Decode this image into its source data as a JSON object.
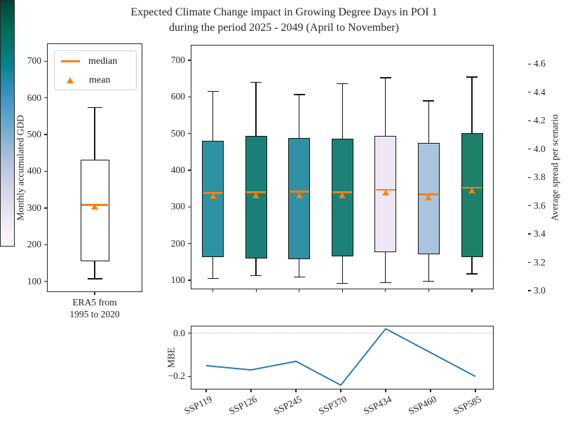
{
  "title": {
    "line1": "Expected Climate Change impact in Growing Degree Days in POI 1",
    "line2": "during the period 2025 - 2049 (April to November)"
  },
  "legend": {
    "median_label": "median",
    "mean_label": "mean"
  },
  "era5_axis": {
    "ylabel": "Monthly accumulated GDD",
    "xtick_line1": "ERA5 from",
    "xtick_line2": "1995 to 2020"
  },
  "mbe_axis": {
    "ylabel": "MBE"
  },
  "colorbar": {
    "label": "Average spread per scenario",
    "colormap": "PuBuGn",
    "vmin": 3.0,
    "vmax": 4.74,
    "ticks": [
      {
        "v": 3.0,
        "label": "3.0"
      },
      {
        "v": 3.2,
        "label": "3.2"
      },
      {
        "v": 3.4,
        "label": "3.4"
      },
      {
        "v": 3.6,
        "label": "3.6"
      },
      {
        "v": 3.8,
        "label": "3.8"
      },
      {
        "v": 4.0,
        "label": "4.0"
      },
      {
        "v": 4.2,
        "label": "4.2"
      },
      {
        "v": 4.4,
        "label": "4.4"
      },
      {
        "v": 4.6,
        "label": "4.6"
      }
    ],
    "gradient": [
      "#fff7fb",
      "#ece7f2",
      "#d0d1e6",
      "#a6bddb",
      "#67a9cf",
      "#3690c0",
      "#02818a",
      "#016c59",
      "#014636"
    ]
  },
  "colors": {
    "median": "#ff7f0e",
    "mean": "#ff7f0e",
    "mbe_line": "#1f77b4",
    "zero_line": "#bdbdbd",
    "box_edge": "#141414"
  },
  "chart_data": [
    {
      "type": "boxplot",
      "name": "era5_reference_boxplot",
      "ylabel": "Monthly accumulated GDD",
      "ylim": [
        71,
        748
      ],
      "yticks": [
        100,
        200,
        300,
        400,
        500,
        600,
        700
      ],
      "categories": [
        "ERA5 from 1995 to 2020"
      ],
      "series": [
        {
          "label": "ERA5 from 1995 to 2020",
          "whislo": 107,
          "q1": 155,
          "med": 308,
          "mean": 303,
          "q3": 431,
          "whishi": 573,
          "fill": "#ffffff"
        }
      ],
      "legend": [
        {
          "label": "median",
          "marker": "line",
          "color": "#ff7f0e"
        },
        {
          "label": "mean",
          "marker": "triangle",
          "color": "#ff7f0e"
        }
      ]
    },
    {
      "type": "boxplot",
      "name": "ssp_scenario_boxplots",
      "ylim": [
        75,
        742
      ],
      "yticks": [
        100,
        200,
        300,
        400,
        500,
        600,
        700
      ],
      "categories": [
        "SSP119",
        "SSP126",
        "SSP245",
        "SSP370",
        "SSP434",
        "SSP460",
        "SSP585"
      ],
      "series": [
        {
          "label": "SSP119",
          "whislo": 105,
          "q1": 163,
          "med": 338,
          "mean": 330,
          "q3": 480,
          "whishi": 615,
          "fill": "#2e91a4",
          "spread_est": 4.2
        },
        {
          "label": "SSP126",
          "whislo": 112,
          "q1": 160,
          "med": 340,
          "mean": 332,
          "q3": 494,
          "whishi": 640,
          "fill": "#1a8078",
          "spread_est": 4.4
        },
        {
          "label": "SSP245",
          "whislo": 108,
          "q1": 157,
          "med": 342,
          "mean": 331,
          "q3": 488,
          "whishi": 606,
          "fill": "#2e91a4",
          "spread_est": 4.2
        },
        {
          "label": "SSP370",
          "whislo": 91,
          "q1": 164,
          "med": 340,
          "mean": 332,
          "q3": 486,
          "whishi": 636,
          "fill": "#1d8179",
          "spread_est": 4.4
        },
        {
          "label": "SSP434",
          "whislo": 93,
          "q1": 177,
          "med": 346,
          "mean": 338,
          "q3": 494,
          "whishi": 652,
          "fill": "#eee7f3",
          "spread_est": 3.2
        },
        {
          "label": "SSP460",
          "whislo": 97,
          "q1": 170,
          "med": 334,
          "mean": 325,
          "q3": 474,
          "whishi": 589,
          "fill": "#a9c4df",
          "spread_est": 3.6
        },
        {
          "label": "SSP585",
          "whislo": 117,
          "q1": 163,
          "med": 352,
          "mean": 344,
          "q3": 501,
          "whishi": 654,
          "fill": "#1f8069",
          "spread_est": 4.4
        }
      ]
    },
    {
      "type": "line",
      "name": "mbe_per_scenario",
      "ylabel": "MBE",
      "x": [
        "SSP119",
        "SSP126",
        "SSP245",
        "SSP370",
        "SSP434",
        "SSP460",
        "SSP585"
      ],
      "values": [
        -0.15,
        -0.17,
        -0.13,
        -0.24,
        0.02,
        -0.09,
        -0.2
      ],
      "ylim": [
        -0.26,
        0.034
      ],
      "yticks": [
        {
          "v": 0.0,
          "label": "0.0"
        },
        {
          "v": -0.2,
          "label": "−0.2"
        }
      ],
      "zero_line": true,
      "line_color": "#1f77b4"
    }
  ]
}
